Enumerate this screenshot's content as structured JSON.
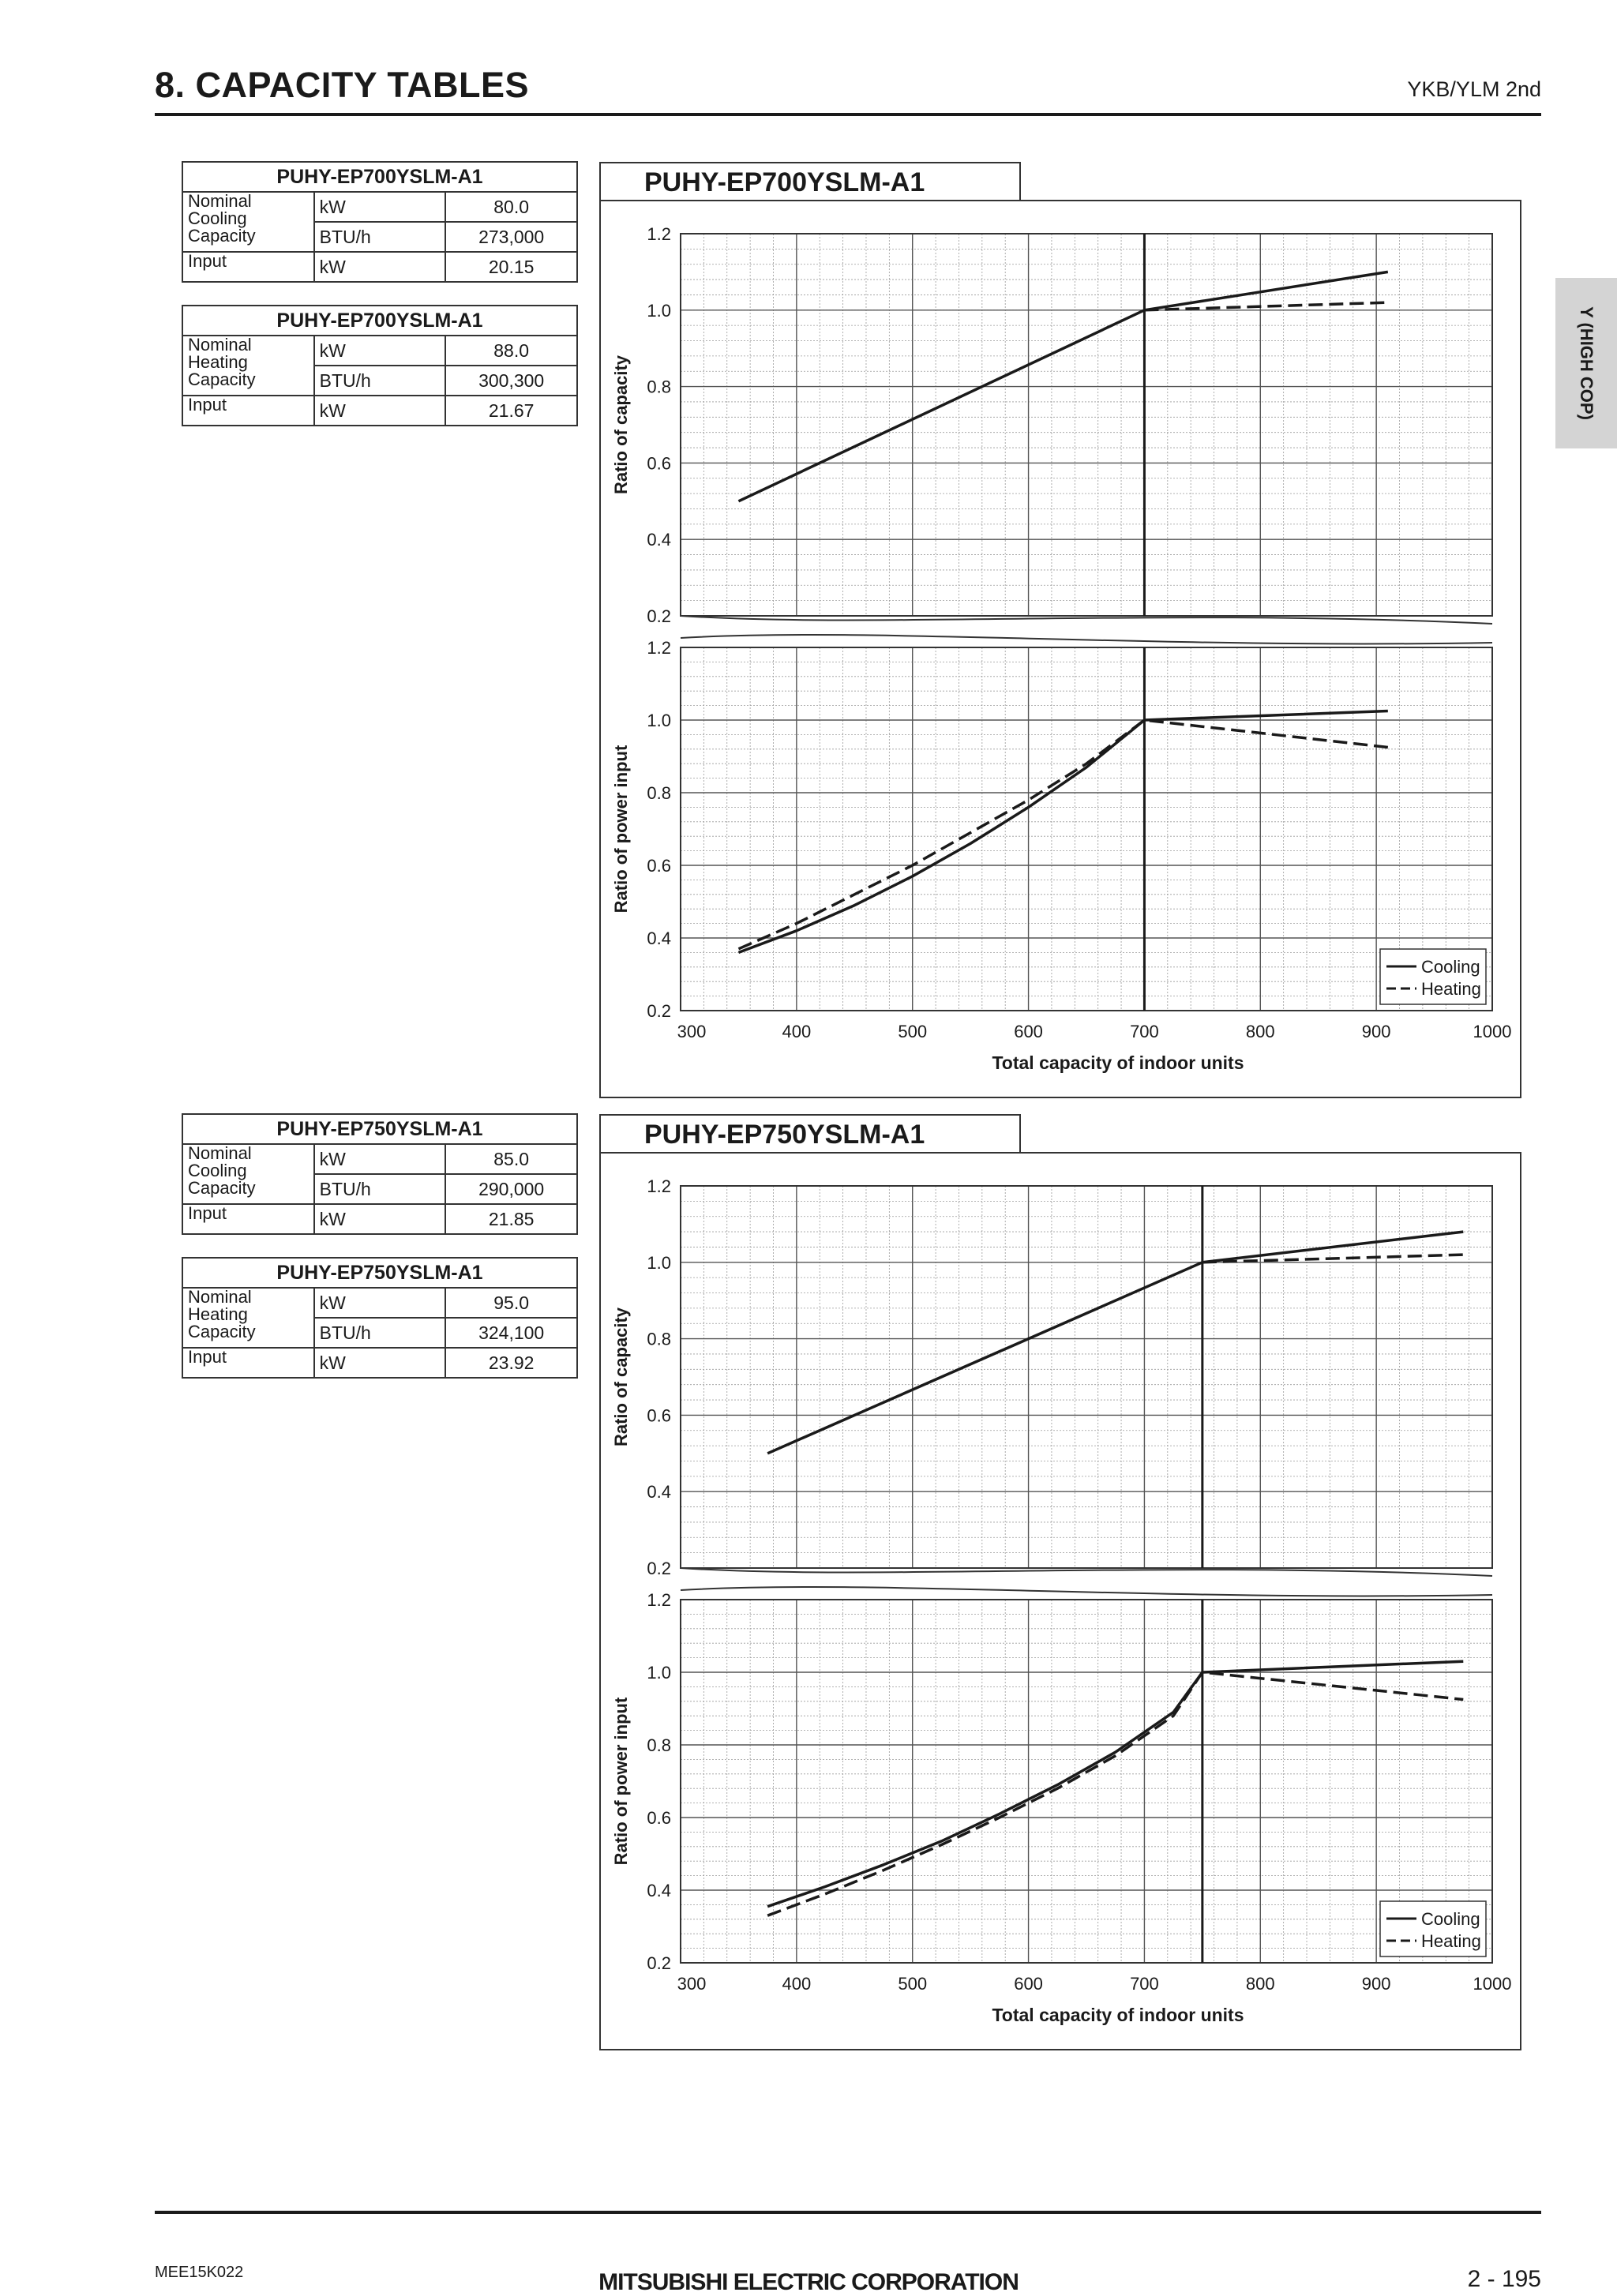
{
  "header": {
    "title": "8. CAPACITY TABLES",
    "series": "YKB/YLM 2nd"
  },
  "side_tab": {
    "label": "Y (HIGH COP)"
  },
  "footer": {
    "code": "MEE15K022",
    "company": "MITSUBISHI ELECTRIC CORPORATION",
    "page": "2 - 195"
  },
  "tables": [
    {
      "model": "PUHY-EP700YSLM-A1",
      "label": "Nominal Cooling Capacity",
      "rows": [
        {
          "unit": "kW",
          "value": "80.0"
        },
        {
          "unit": "BTU/h",
          "value": "273,000"
        }
      ],
      "input": {
        "label": "Input",
        "unit": "kW",
        "value": "20.15"
      }
    },
    {
      "model": "PUHY-EP700YSLM-A1",
      "label": "Nominal Heating Capacity",
      "rows": [
        {
          "unit": "kW",
          "value": "88.0"
        },
        {
          "unit": "BTU/h",
          "value": "300,300"
        }
      ],
      "input": {
        "label": "Input",
        "unit": "kW",
        "value": "21.67"
      }
    },
    {
      "model": "PUHY-EP750YSLM-A1",
      "label": "Nominal Cooling Capacity",
      "rows": [
        {
          "unit": "kW",
          "value": "85.0"
        },
        {
          "unit": "BTU/h",
          "value": "290,000"
        }
      ],
      "input": {
        "label": "Input",
        "unit": "kW",
        "value": "21.85"
      }
    },
    {
      "model": "PUHY-EP750YSLM-A1",
      "label": "Nominal Heating Capacity",
      "rows": [
        {
          "unit": "kW",
          "value": "95.0"
        },
        {
          "unit": "BTU/h",
          "value": "324,100"
        }
      ],
      "input": {
        "label": "Input",
        "unit": "kW",
        "value": "23.92"
      }
    }
  ],
  "chart_data": [
    {
      "type": "line",
      "title": "PUHY-EP700YSLM-A1",
      "xlabel": "Total capacity of indoor units",
      "xlim": [
        300,
        1000
      ],
      "x_ticks": [
        300,
        400,
        500,
        600,
        700,
        800,
        900,
        1000
      ],
      "nominal_x": 700,
      "legend": {
        "placement": "bottom-right",
        "entries": [
          {
            "name": "Cooling",
            "style": "solid"
          },
          {
            "name": "Heating",
            "style": "dashed"
          }
        ]
      },
      "grid": true,
      "panels": [
        {
          "ylabel": "Ratio of capacity",
          "ylim": [
            0.2,
            1.2
          ],
          "y_ticks": [
            0.2,
            0.4,
            0.6,
            0.8,
            1.0,
            1.2
          ],
          "series": [
            {
              "name": "Cooling",
              "style": "solid",
              "x": [
                350,
                700,
                910
              ],
              "y": [
                0.5,
                1.0,
                1.1
              ]
            },
            {
              "name": "Heating",
              "style": "dashed",
              "x": [
                700,
                910
              ],
              "y": [
                1.0,
                1.02
              ]
            }
          ]
        },
        {
          "ylabel": "Ratio of power input",
          "ylim": [
            0.2,
            1.2
          ],
          "y_ticks": [
            0.2,
            0.4,
            0.6,
            0.8,
            1.0,
            1.2
          ],
          "series": [
            {
              "name": "Cooling",
              "style": "solid",
              "x": [
                350,
                400,
                450,
                500,
                550,
                600,
                650,
                700,
                910
              ],
              "y": [
                0.36,
                0.42,
                0.49,
                0.57,
                0.66,
                0.76,
                0.87,
                1.0,
                1.025
              ]
            },
            {
              "name": "Heating",
              "style": "dashed",
              "x": [
                350,
                400,
                450,
                500,
                550,
                600,
                650,
                700,
                910
              ],
              "y": [
                0.37,
                0.44,
                0.52,
                0.6,
                0.69,
                0.78,
                0.88,
                1.0,
                0.925
              ]
            }
          ]
        }
      ]
    },
    {
      "type": "line",
      "title": "PUHY-EP750YSLM-A1",
      "xlabel": "Total capacity of indoor units",
      "xlim": [
        300,
        1000
      ],
      "x_ticks": [
        300,
        400,
        500,
        600,
        700,
        800,
        900,
        1000
      ],
      "nominal_x": 750,
      "legend": {
        "placement": "bottom-right",
        "entries": [
          {
            "name": "Cooling",
            "style": "solid"
          },
          {
            "name": "Heating",
            "style": "dashed"
          }
        ]
      },
      "grid": true,
      "panels": [
        {
          "ylabel": "Ratio of capacity",
          "ylim": [
            0.2,
            1.2
          ],
          "y_ticks": [
            0.2,
            0.4,
            0.6,
            0.8,
            1.0,
            1.2
          ],
          "series": [
            {
              "name": "Cooling",
              "style": "solid",
              "x": [
                375,
                750,
                975
              ],
              "y": [
                0.5,
                1.0,
                1.08
              ]
            },
            {
              "name": "Heating",
              "style": "dashed",
              "x": [
                750,
                975
              ],
              "y": [
                1.0,
                1.02
              ]
            }
          ]
        },
        {
          "ylabel": "Ratio of power input",
          "ylim": [
            0.2,
            1.2
          ],
          "y_ticks": [
            0.2,
            0.4,
            0.6,
            0.8,
            1.0,
            1.2
          ],
          "series": [
            {
              "name": "Cooling",
              "style": "solid",
              "x": [
                375,
                425,
                475,
                525,
                575,
                625,
                675,
                725,
                750,
                975
              ],
              "y": [
                0.355,
                0.41,
                0.47,
                0.535,
                0.61,
                0.69,
                0.78,
                0.89,
                1.0,
                1.03
              ]
            },
            {
              "name": "Heating",
              "style": "dashed",
              "x": [
                375,
                425,
                475,
                525,
                575,
                625,
                675,
                725,
                750,
                975
              ],
              "y": [
                0.33,
                0.39,
                0.455,
                0.525,
                0.6,
                0.68,
                0.77,
                0.88,
                1.0,
                0.925
              ]
            }
          ]
        }
      ]
    }
  ]
}
